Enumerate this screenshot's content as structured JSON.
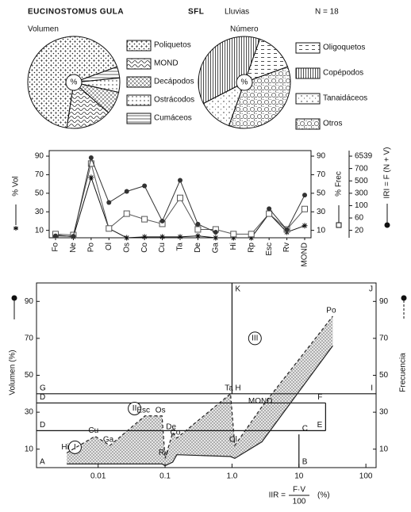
{
  "header": {
    "species": "EUCINOSTOMUS GULA",
    "locality": "SFL",
    "season": "Lluvias",
    "sample": "N = 18"
  },
  "chart_data": [
    {
      "type": "pie",
      "title": "Volumen",
      "center_label": "%",
      "categories": [
        "Poliquetos",
        "MOND",
        "Decápodos",
        "Ostrácodos",
        "Cumáceos"
      ],
      "values": [
        67,
        16,
        8,
        5,
        4
      ]
    },
    {
      "type": "pie",
      "title": "Número",
      "center_label": "%",
      "categories": [
        "Oligoquetos",
        "Copépodos",
        "Tanaidáceos",
        "Otros"
      ],
      "values": [
        14,
        38,
        12,
        36
      ]
    },
    {
      "type": "line",
      "categories": [
        "Fo",
        "Ne",
        "Po",
        "Ol",
        "Os",
        "Co",
        "Cu",
        "Ta",
        "De",
        "Ga",
        "Hi",
        "Rp",
        "Esc",
        "Rv",
        "MOND"
      ],
      "ylabel": "% Vol",
      "y2label": "% Frec",
      "y3label": "IRI = F (N + V)",
      "ylim": [
        2,
        96
      ],
      "yticks": [
        10,
        30,
        50,
        70,
        90
      ],
      "y2lim": [
        2,
        96
      ],
      "y2ticks": [
        10,
        30,
        50,
        70,
        90
      ],
      "y3lim": [
        0,
        6539
      ],
      "y3ticks": [
        20,
        60,
        100,
        300,
        500,
        700,
        6539
      ],
      "series": [
        {
          "marker": "star",
          "color": "#111111",
          "values": [
            5,
            3,
            67,
            12,
            2,
            3,
            3,
            3,
            4,
            2,
            2,
            2,
            28,
            8,
            15
          ]
        },
        {
          "marker": "square",
          "color": "#555555",
          "axis": "y2",
          "values": [
            6,
            5,
            82,
            12,
            28,
            22,
            17,
            45,
            11,
            11,
            6,
            6,
            28,
            11,
            33
          ]
        },
        {
          "marker": "circle",
          "color": "#333333",
          "axis": "y3",
          "values": [
            5,
            4,
            5800,
            150,
            330,
            420,
            50,
            510,
            40,
            15,
            null,
            null,
            90,
            22,
            270
          ]
        }
      ]
    },
    {
      "type": "line",
      "xscale": "log",
      "xlabel": {
        "lhs": "IIR =",
        "numerator": "F·V",
        "denominator": "100",
        "unit": "(%)"
      },
      "ylabel": "Volumen  (%)",
      "y2label": "Frecuencia",
      "x": [
        0.0034,
        0.009,
        0.015,
        0.05,
        0.09,
        0.1,
        0.13,
        0.15,
        0.95,
        1.1,
        2.8,
        32
      ],
      "point_labels": [
        "Hi",
        "Cu",
        "Ga",
        "Esc",
        "Os",
        "Rv",
        "De",
        "Co",
        "Ta",
        "Ol",
        "MOND",
        "Po"
      ],
      "xlim": [
        0.0012,
        142
      ],
      "xticks": [
        0.01,
        0.1,
        {
          "value": 1,
          "label": "1.0"
        },
        10,
        100
      ],
      "ylim": [
        0,
        100
      ],
      "yticks": [
        10,
        30,
        50,
        70,
        90
      ],
      "y2lim": [
        0,
        100
      ],
      "y2ticks": [
        10,
        30,
        50,
        70,
        90
      ],
      "series": [
        {
          "style": "solid",
          "color": "#222222",
          "values": [
            2,
            2,
            2,
            2,
            2,
            1,
            3,
            7,
            6,
            5,
            14,
            66
          ]
        },
        {
          "style": "dashed",
          "color": "#222222",
          "axis": "y2",
          "values": [
            8,
            17,
            12,
            28,
            28,
            5,
            19,
            16,
            40,
            12,
            33,
            82
          ]
        }
      ],
      "zone_lines": [
        {
          "x": [
            0.0012,
            142
          ],
          "y": [
            40,
            40
          ]
        },
        {
          "x": [
            0.0012,
            25
          ],
          "y": [
            35,
            35
          ]
        },
        {
          "x": [
            25,
            25
          ],
          "y": [
            35,
            20
          ]
        },
        {
          "x": [
            0.0012,
            25
          ],
          "y": [
            20,
            20
          ]
        },
        {
          "x": [
            10,
            10
          ],
          "y": [
            18,
            0
          ]
        },
        {
          "x": [
            1,
            1
          ],
          "y": [
            40,
            100
          ]
        }
      ],
      "zone_letters": [
        {
          "text": "A",
          "x": 0.0012,
          "y": 0
        },
        {
          "text": "B",
          "x": 10,
          "y": 0
        },
        {
          "text": "C",
          "x": 10,
          "y": 18
        },
        {
          "text": "D",
          "x": 0.0012,
          "y": 20
        },
        {
          "text": "D",
          "x": 0.0012,
          "y": 35
        },
        {
          "text": "E",
          "x": 25,
          "y": 20
        },
        {
          "text": "F",
          "x": 25,
          "y": 35
        },
        {
          "text": "G",
          "x": 0.0012,
          "y": 40
        },
        {
          "text": "H",
          "x": 1,
          "y": 40
        },
        {
          "text": "I",
          "x": 142,
          "y": 40
        },
        {
          "text": "J",
          "x": 142,
          "y": 100
        },
        {
          "text": "K",
          "x": 1,
          "y": 100
        }
      ],
      "zone_numerals": [
        {
          "text": "I",
          "x": 0.0045,
          "y": 11
        },
        {
          "text": "II",
          "x": 0.035,
          "y": 32
        },
        {
          "text": "III",
          "x": 2.2,
          "y": 70
        }
      ]
    }
  ]
}
